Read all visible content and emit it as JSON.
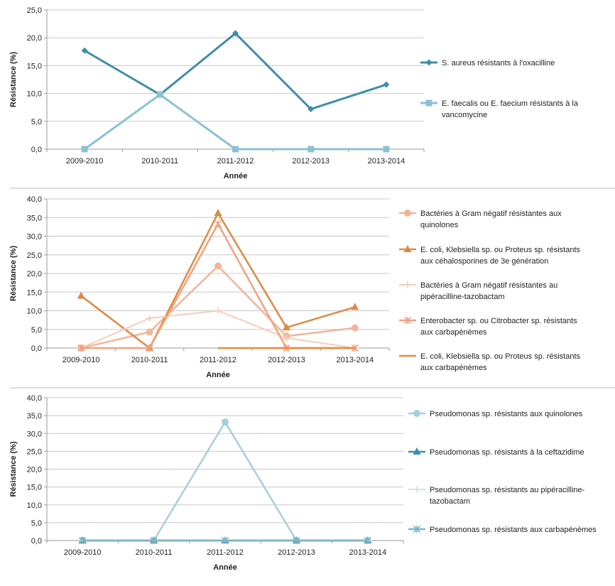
{
  "chart_data": [
    {
      "type": "line",
      "xlabel": "Année",
      "ylabel": "Résistance (%)",
      "categories": [
        "2009-2010",
        "2010-2011",
        "2011-2012",
        "2012-2013",
        "2013-2014"
      ],
      "ylim": [
        0,
        25
      ],
      "yticks": [
        "0,0",
        "5,0",
        "10,0",
        "15,0",
        "20,0",
        "25,0"
      ],
      "grid": true,
      "legend": "right",
      "series": [
        {
          "name": "S. aureus résistants à l'oxacilline",
          "legend_lines": [
            "S. aureus résistants à l'oxacilline"
          ],
          "values": [
            17.7,
            9.8,
            20.8,
            7.2,
            11.6
          ],
          "color": "#3d8fa5",
          "marker": "diamond",
          "width": 3
        },
        {
          "name": "E. faecalis ou E. faecium résistants à la vancomycine",
          "legend_lines": [
            "E. faecalis ou E. faecium résistants à la",
            "vancomycine"
          ],
          "values": [
            0,
            9.8,
            0,
            0,
            0
          ],
          "color": "#8bc1d3",
          "marker": "square",
          "width": 3
        }
      ]
    },
    {
      "type": "line",
      "xlabel": "Année",
      "ylabel": "Résistance (%)",
      "categories": [
        "2009-2010",
        "2010-2011",
        "2011-2012",
        "2012-2013",
        "2013-2014"
      ],
      "ylim": [
        0,
        40
      ],
      "yticks": [
        "0,0",
        "5,0",
        "10,0",
        "15,0",
        "20,0",
        "25,0",
        "30,0",
        "35,0",
        "40,0"
      ],
      "grid": true,
      "legend": "right",
      "series": [
        {
          "name": "Bactéries à Gram négatif résistantes aux quinolones",
          "legend_lines": [
            "Bactéries à Gram négatif résistantes aux",
            "quinolones"
          ],
          "values": [
            0,
            4.3,
            22.0,
            3.2,
            5.4
          ],
          "color": "#f2b59a",
          "marker": "circle",
          "width": 2.5
        },
        {
          "name": "E. coli, Klebsiella sp. ou Proteus sp. résistants aux céhalosporines de 3e génération",
          "legend_lines": [
            "E. coli, Klebsiella sp. ou Proteus sp. résistants",
            "aux céhalosporines de 3e génération"
          ],
          "values": [
            14.0,
            0,
            36.2,
            5.5,
            11.0
          ],
          "color": "#dd8a45",
          "marker": "triangle",
          "width": 2.5
        },
        {
          "name": "Bactéries à Gram négatif résistantes au pipéracilline-tazobactam",
          "legend_lines": [
            "Bactéries à Gram négatif résistantes au",
            "pipéracilline-tazobactam"
          ],
          "values": [
            0,
            8.0,
            10.0,
            2.7,
            0
          ],
          "color": "#f7cdb8",
          "marker": "plus",
          "width": 2
        },
        {
          "name": "Enterobacter sp. ou Citrobacter sp. résistants aux carbapénèmes",
          "legend_lines": [
            "Enterobacter sp. ou Citrobacter sp. résistants",
            "aux carbapénèmes"
          ],
          "values": [
            0,
            0,
            33.3,
            0,
            0
          ],
          "color": "#f0a27e",
          "marker": "star",
          "width": 2.5
        },
        {
          "name": "E. coli, Klebsiella sp. ou Proteus sp. résistants aux carbapénèmes",
          "legend_lines": [
            "E. coli, Klebsiella sp. ou Proteus sp. résistants",
            "aux carbapénèmes"
          ],
          "values": [
            null,
            null,
            0,
            0,
            0
          ],
          "color": "#e58a3e",
          "marker": "none",
          "width": 2.5
        }
      ]
    },
    {
      "type": "line",
      "xlabel": "Année",
      "ylabel": "Résistance (%)",
      "categories": [
        "2009-2010",
        "2010-2011",
        "2011-2012",
        "2012-2013",
        "2013-2014"
      ],
      "ylim": [
        0,
        40
      ],
      "yticks": [
        "0,0",
        "5,0",
        "10,0",
        "15,0",
        "20,0",
        "25,0",
        "30,0",
        "35,0",
        "40,0"
      ],
      "grid": true,
      "legend": "right",
      "series": [
        {
          "name": "Pseudomonas sp. résistants aux quinolones",
          "legend_lines": [
            "Pseudomonas sp. résistants aux quinolones"
          ],
          "values": [
            0,
            0,
            33.2,
            0,
            0
          ],
          "color": "#a6cfdc",
          "marker": "circle",
          "width": 2.5
        },
        {
          "name": "Pseudomonas sp. résistants à la ceftazidime",
          "legend_lines": [
            "Pseudomonas sp. résistants à la ceftazidime"
          ],
          "values": [
            0,
            0,
            0,
            0,
            0
          ],
          "color": "#3d8fa5",
          "marker": "triangle",
          "width": 2.5
        },
        {
          "name": "Pseudomonas sp. résistants au pipéracilline-tazobactam",
          "legend_lines": [
            "Pseudomonas sp. résistants au pipéracilline-",
            "tazobactam"
          ],
          "values": [
            0,
            0,
            0,
            0,
            0
          ],
          "color": "#cfe3ea",
          "marker": "plus",
          "width": 2
        },
        {
          "name": "Pseudomonas sp. résistants aux carbapénèmes",
          "legend_lines": [
            "Pseudomonas sp. résistants aux carbapénèmes"
          ],
          "values": [
            0,
            0,
            0,
            0,
            0
          ],
          "color": "#7fb5c6",
          "marker": "star",
          "width": 2.5
        }
      ]
    }
  ]
}
